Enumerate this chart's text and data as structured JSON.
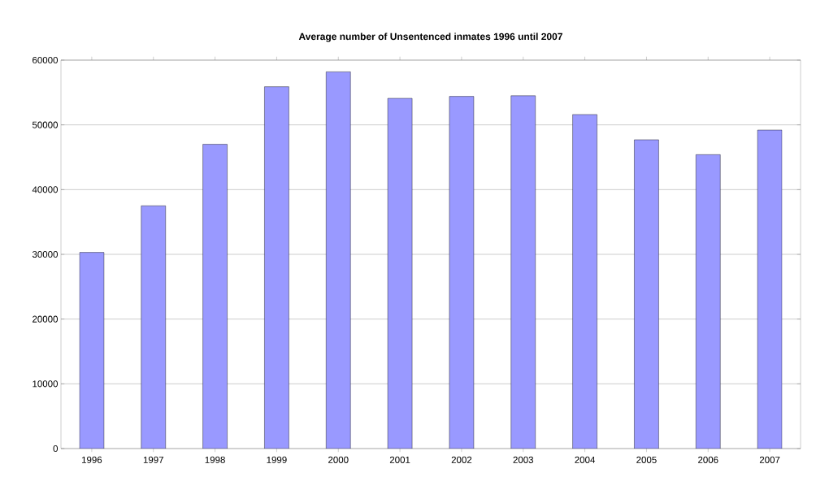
{
  "chart_data": {
    "type": "bar",
    "title": "Average number of Unsentenced inmates 1996 until 2007",
    "categories": [
      "1996",
      "1997",
      "1998",
      "1999",
      "2000",
      "2001",
      "2002",
      "2003",
      "2004",
      "2005",
      "2006",
      "2007"
    ],
    "values": [
      30300,
      37500,
      47000,
      55900,
      58200,
      54100,
      54400,
      54500,
      51600,
      47700,
      45400,
      49200
    ],
    "color": "#9999ff",
    "ylim": [
      0,
      60000
    ],
    "yticks": [
      0,
      10000,
      20000,
      30000,
      40000,
      50000,
      60000
    ],
    "grid": "y"
  }
}
